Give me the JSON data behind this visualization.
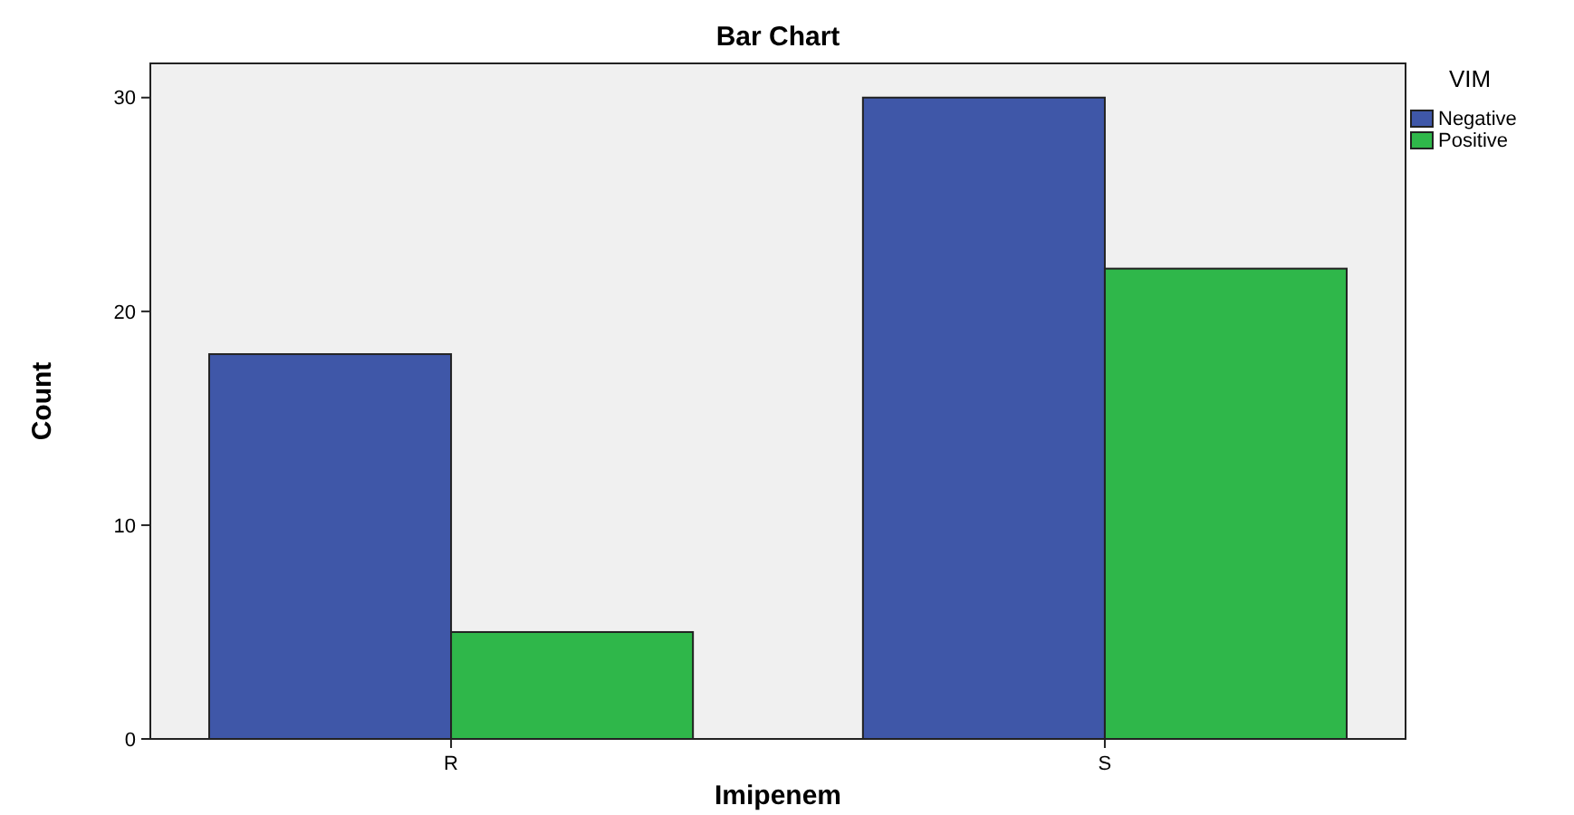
{
  "chart_data": {
    "type": "bar",
    "title": "Bar Chart",
    "xlabel": "Imipenem",
    "ylabel": "Count",
    "legend_title": "VIM",
    "categories": [
      "R",
      "S"
    ],
    "series": [
      {
        "name": "Negative",
        "color": "#3f57a8",
        "values": [
          18,
          30
        ]
      },
      {
        "name": "Positive",
        "color": "#2fb74a",
        "values": [
          5,
          22
        ]
      }
    ],
    "ylim": [
      0,
      31.6
    ],
    "yticks": [
      0,
      10,
      20,
      30
    ],
    "grid": false,
    "legend": "top right"
  }
}
